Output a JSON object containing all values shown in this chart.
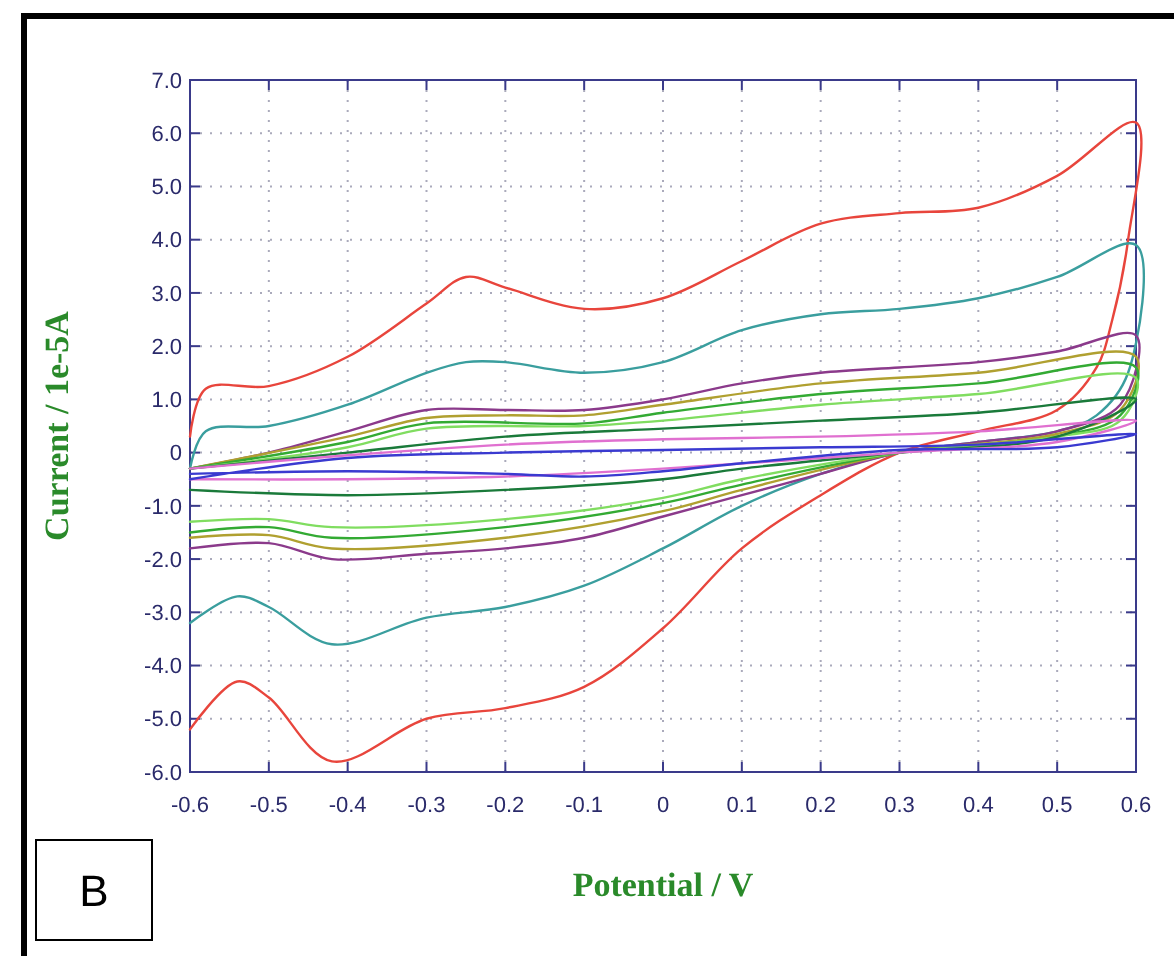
{
  "chart_data": {
    "type": "line",
    "xlabel": "Potential / V",
    "ylabel": "Current / 1e-5A",
    "annotations": [
      "B"
    ],
    "xlim": [
      -0.6,
      0.6
    ],
    "ylim": [
      -6,
      7
    ],
    "xticks": [
      -0.6,
      -0.5,
      -0.4,
      -0.3,
      -0.2,
      -0.1,
      0,
      0.1,
      0.2,
      0.3,
      0.4,
      0.5,
      0.6
    ],
    "yticks": [
      {
        "value": -6,
        "label": "-6.0"
      },
      {
        "value": -5,
        "label": "-5.0"
      },
      {
        "value": -4,
        "label": "-4.0"
      },
      {
        "value": -3,
        "label": "-3.0"
      },
      {
        "value": -2,
        "label": "-2.0"
      },
      {
        "value": -1,
        "label": "-1.0"
      },
      0,
      {
        "value": 1,
        "label": "1.0"
      },
      {
        "value": 2,
        "label": "2.0"
      },
      {
        "value": 3,
        "label": "3.0"
      },
      {
        "value": 4,
        "label": "4.0"
      },
      {
        "value": 5,
        "label": "5.0"
      },
      {
        "value": 6,
        "label": "6.0"
      },
      {
        "value": 7,
        "label": "7.0"
      }
    ],
    "grid": true,
    "marker": "none",
    "line_style": "solid",
    "series": [
      {
        "color": "#e8453c",
        "x": [
          -0.6,
          -0.58,
          -0.5,
          -0.4,
          -0.3,
          -0.25,
          -0.2,
          -0.1,
          0,
          0.1,
          0.2,
          0.3,
          0.4,
          0.5,
          0.6,
          0.59,
          0.57,
          0.55,
          0.5,
          0.4,
          0.3,
          0.2,
          0.1,
          0,
          -0.1,
          -0.2,
          -0.3,
          -0.42,
          -0.5,
          -0.54,
          -0.6
        ],
        "values": [
          0.3,
          1.2,
          1.25,
          1.8,
          2.8,
          3.3,
          3.1,
          2.7,
          2.9,
          3.6,
          4.3,
          4.5,
          4.6,
          5.2,
          6.2,
          4.0,
          2.5,
          1.6,
          0.8,
          0.4,
          0,
          -0.8,
          -1.8,
          -3.3,
          -4.4,
          -4.8,
          -5.0,
          -5.8,
          -4.6,
          -4.3,
          -5.2
        ]
      },
      {
        "color": "#3a9e9e",
        "x": [
          -0.6,
          -0.58,
          -0.5,
          -0.4,
          -0.3,
          -0.25,
          -0.2,
          -0.1,
          0,
          0.1,
          0.2,
          0.3,
          0.4,
          0.5,
          0.6,
          0.59,
          0.55,
          0.5,
          0.4,
          0.3,
          0.2,
          0.1,
          0,
          -0.1,
          -0.2,
          -0.3,
          -0.42,
          -0.5,
          -0.54,
          -0.6
        ],
        "values": [
          -0.3,
          0.4,
          0.5,
          0.9,
          1.5,
          1.7,
          1.7,
          1.5,
          1.7,
          2.3,
          2.6,
          2.7,
          2.9,
          3.3,
          3.9,
          1.5,
          0.7,
          0.4,
          0.2,
          0,
          -0.4,
          -1.0,
          -1.8,
          -2.5,
          -2.9,
          -3.1,
          -3.6,
          -2.9,
          -2.7,
          -3.2
        ]
      },
      {
        "color": "#8b3a8b",
        "x": [
          -0.6,
          -0.5,
          -0.4,
          -0.3,
          -0.2,
          -0.1,
          0,
          0.1,
          0.2,
          0.3,
          0.4,
          0.5,
          0.6,
          0.58,
          0.5,
          0.4,
          0.3,
          0.2,
          0.1,
          0,
          -0.1,
          -0.2,
          -0.3,
          -0.42,
          -0.5,
          -0.6
        ],
        "values": [
          -0.3,
          0,
          0.4,
          0.8,
          0.8,
          0.8,
          1.0,
          1.3,
          1.5,
          1.6,
          1.7,
          1.9,
          2.2,
          0.9,
          0.4,
          0.2,
          0,
          -0.4,
          -0.8,
          -1.2,
          -1.6,
          -1.8,
          -1.9,
          -2.0,
          -1.7,
          -1.8
        ]
      },
      {
        "color": "#b0a030",
        "x": [
          -0.6,
          -0.4,
          -0.3,
          -0.2,
          -0.1,
          0,
          0.2,
          0.4,
          0.6,
          0.58,
          0.5,
          0.3,
          0.1,
          0,
          -0.2,
          -0.42,
          -0.5,
          -0.6
        ],
        "values": [
          -0.3,
          0.3,
          0.65,
          0.7,
          0.7,
          0.9,
          1.3,
          1.5,
          1.8,
          0.8,
          0.35,
          0,
          -0.7,
          -1.1,
          -1.6,
          -1.8,
          -1.55,
          -1.6
        ]
      },
      {
        "color": "#33aa33",
        "x": [
          -0.6,
          -0.4,
          -0.3,
          -0.1,
          0,
          0.2,
          0.4,
          0.6,
          0.58,
          0.5,
          0.3,
          0.1,
          0,
          -0.2,
          -0.42,
          -0.5,
          -0.6
        ],
        "values": [
          -0.3,
          0.2,
          0.55,
          0.55,
          0.75,
          1.1,
          1.3,
          1.6,
          0.7,
          0.3,
          0,
          -0.6,
          -0.95,
          -1.4,
          -1.6,
          -1.4,
          -1.5
        ]
      },
      {
        "color": "#80dd60",
        "x": [
          -0.6,
          -0.4,
          -0.3,
          -0.1,
          0,
          0.2,
          0.4,
          0.6,
          0.58,
          0.5,
          0.3,
          0.1,
          0,
          -0.2,
          -0.42,
          -0.5,
          -0.6
        ],
        "values": [
          -0.3,
          0.1,
          0.45,
          0.5,
          0.6,
          0.9,
          1.1,
          1.4,
          0.6,
          0.3,
          0,
          -0.5,
          -0.85,
          -1.25,
          -1.4,
          -1.25,
          -1.3
        ]
      },
      {
        "color": "#1a7a3a",
        "x": [
          -0.6,
          -0.4,
          -0.2,
          0,
          0.2,
          0.4,
          0.6,
          0.5,
          0.3,
          0.1,
          0,
          -0.2,
          -0.4,
          -0.6
        ],
        "values": [
          -0.3,
          0,
          0.3,
          0.45,
          0.6,
          0.75,
          1.0,
          0.3,
          0,
          -0.3,
          -0.5,
          -0.7,
          -0.8,
          -0.7
        ]
      },
      {
        "color": "#e070d0",
        "x": [
          -0.6,
          -0.4,
          -0.2,
          0,
          0.2,
          0.4,
          0.6,
          0.5,
          0.3,
          0,
          -0.2,
          -0.4,
          -0.6
        ],
        "values": [
          -0.3,
          -0.05,
          0.15,
          0.25,
          0.3,
          0.4,
          0.6,
          0.2,
          0,
          -0.3,
          -0.45,
          -0.5,
          -0.5
        ]
      },
      {
        "color": "#3a3ad0",
        "x": [
          -0.6,
          -0.4,
          -0.2,
          0,
          0.2,
          0.4,
          0.6,
          0.5,
          0.3,
          0.1,
          0,
          -0.1,
          -0.2,
          -0.4,
          -0.6
        ],
        "values": [
          -0.5,
          -0.1,
          0,
          0.05,
          0.1,
          0.15,
          0.35,
          0.1,
          0.05,
          -0.2,
          -0.35,
          -0.45,
          -0.4,
          -0.35,
          -0.4
        ]
      }
    ]
  }
}
